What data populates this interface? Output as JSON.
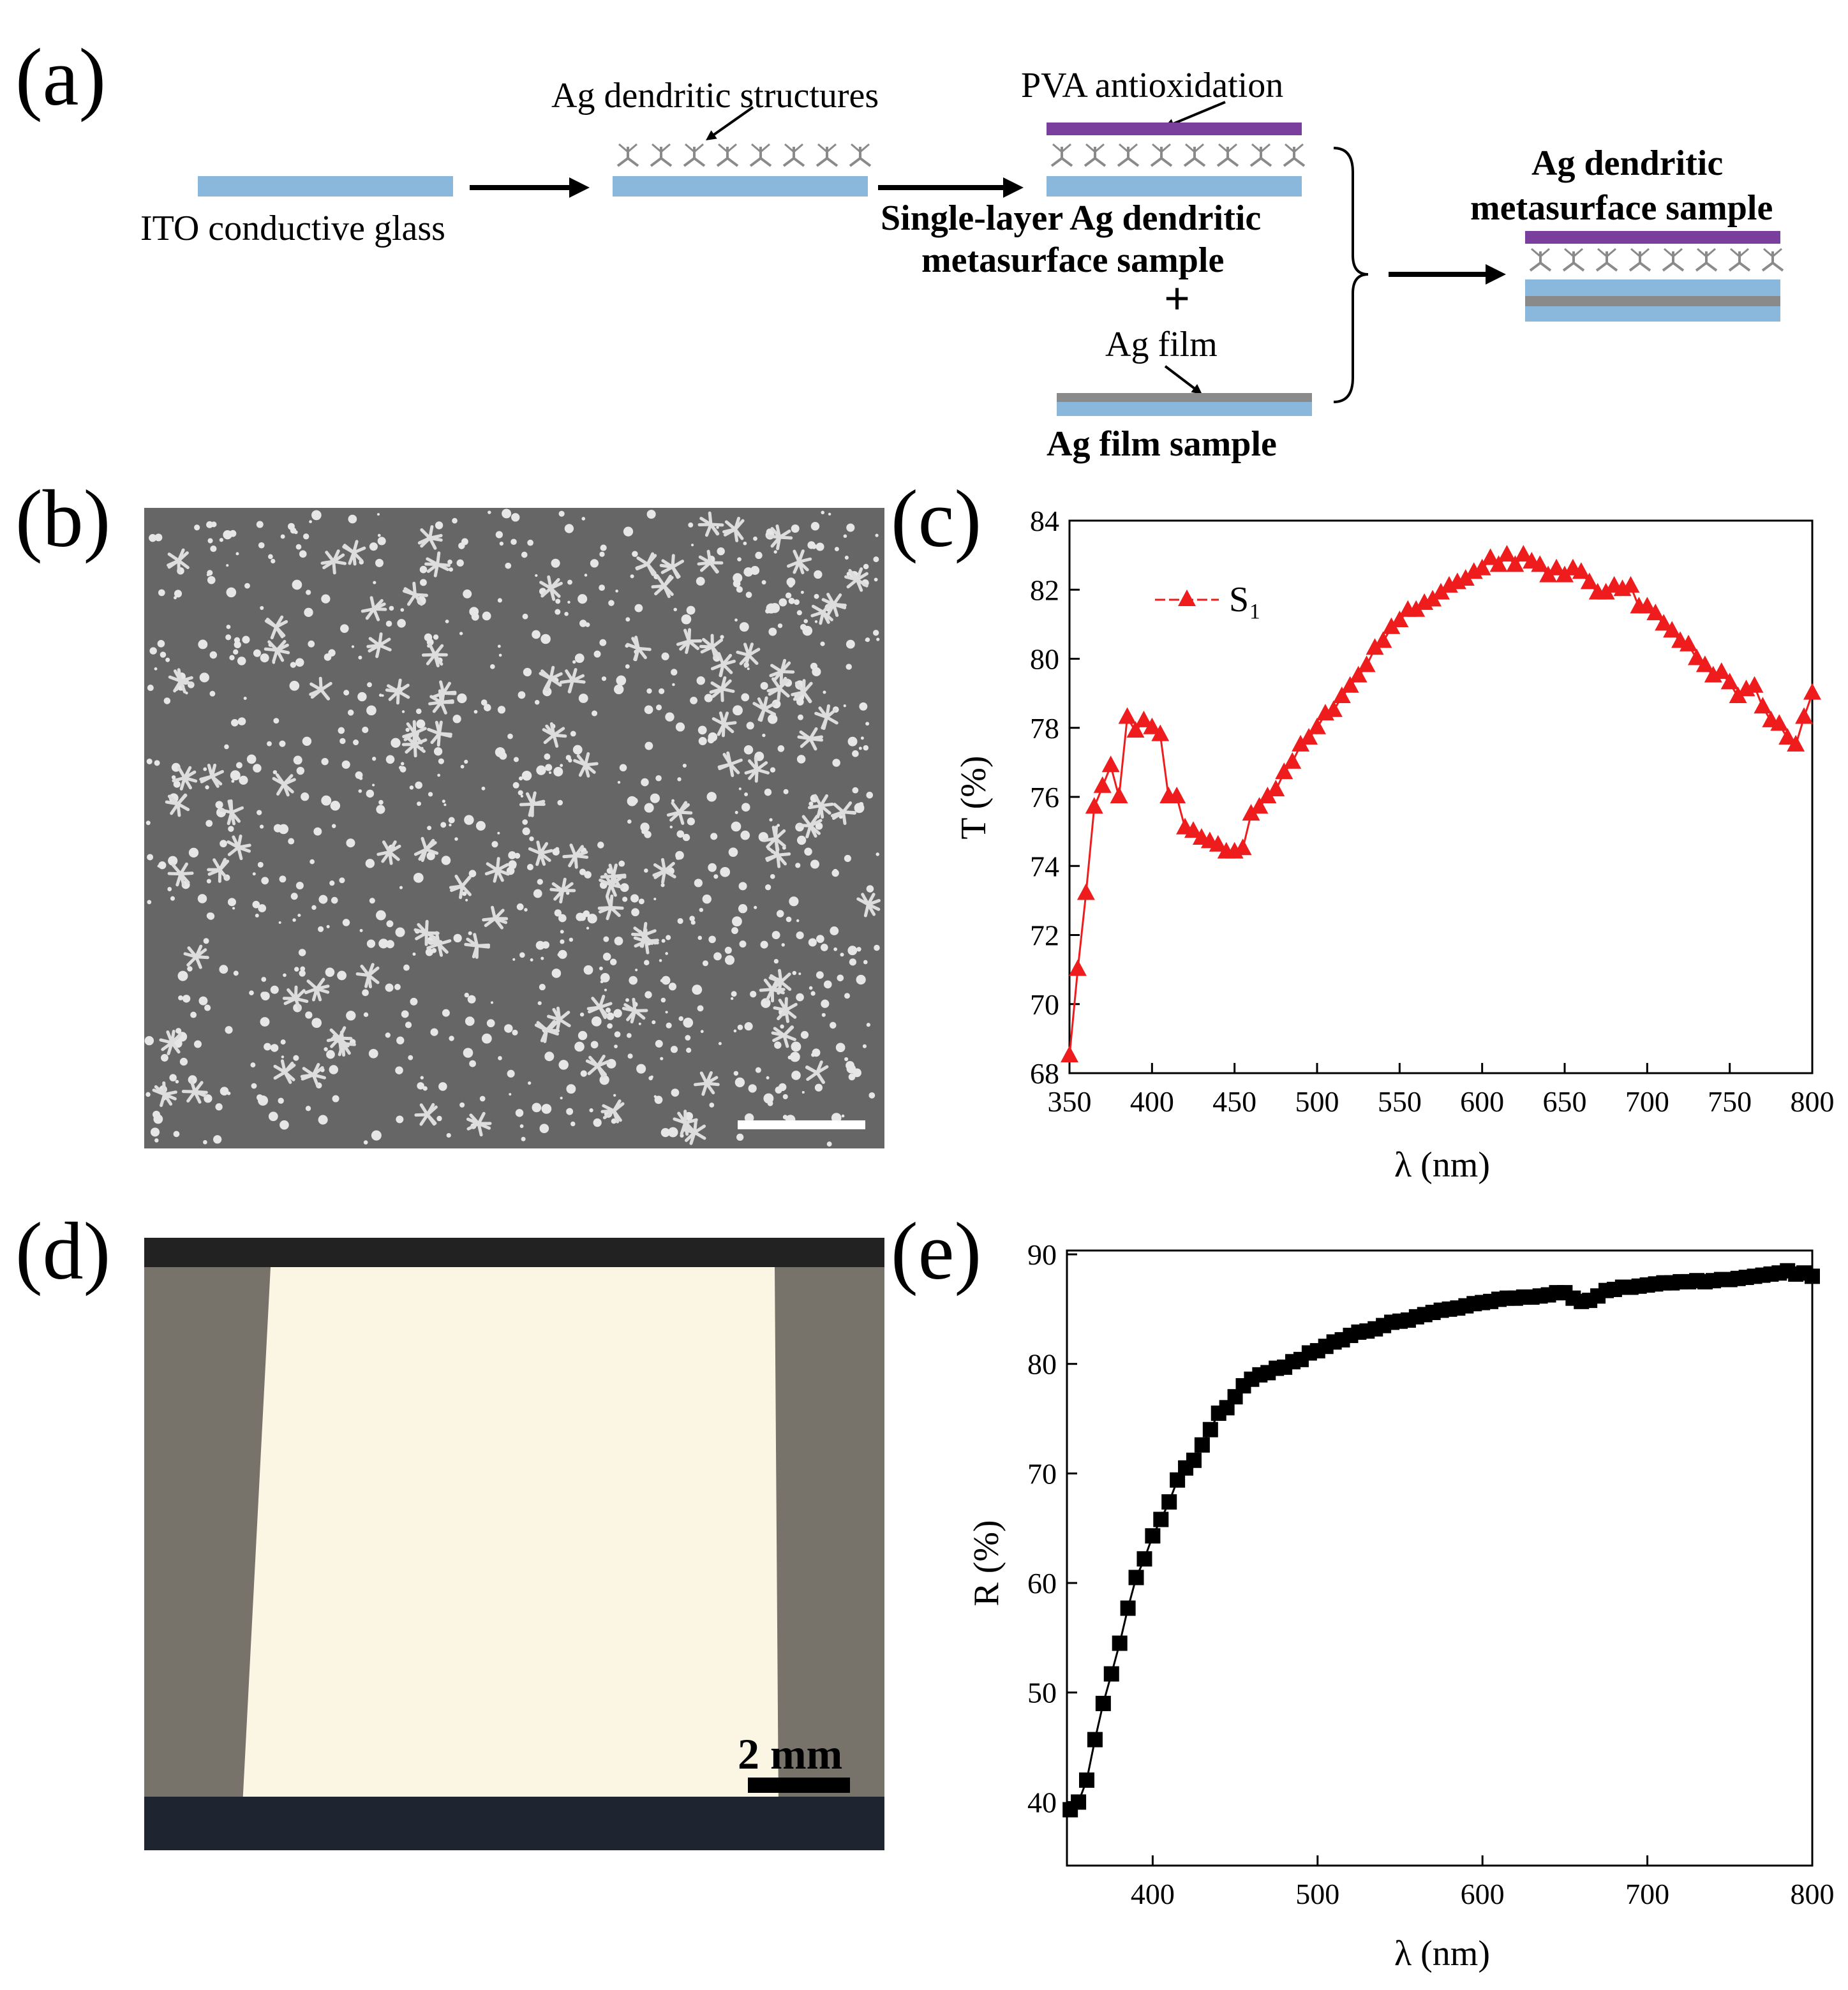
{
  "panel_labels": [
    "(a)",
    "(b)",
    "(c)",
    "(d)",
    "(e)"
  ],
  "diagram": {
    "ito": "ITO conductive glass",
    "dendritic": "Ag dendritic structures",
    "pva": "PVA antioxidation",
    "single_layer": [
      "Single-layer Ag dendritic",
      "metasurface sample"
    ],
    "plus": "+",
    "ag_film": "Ag film",
    "ag_film_sample": "Ag film sample",
    "result": [
      "Ag dendritic",
      "metasurface sample"
    ]
  },
  "photo": {
    "scale_bar": "2 mm"
  },
  "chart_data": [
    {
      "type": "line",
      "xlabel": "λ (nm)",
      "ylabel": "T (%)",
      "xlim": [
        350,
        800
      ],
      "ylim": [
        68,
        84
      ],
      "xticks": [
        350,
        400,
        450,
        500,
        550,
        600,
        650,
        700,
        750,
        800
      ],
      "yticks": [
        68,
        70,
        72,
        74,
        76,
        78,
        80,
        82,
        84
      ],
      "legend": "upper left",
      "marker": "triangle",
      "x": [
        350,
        355,
        360,
        365,
        370,
        375,
        380,
        385,
        390,
        395,
        400,
        405,
        410,
        415,
        420,
        425,
        430,
        435,
        440,
        445,
        450,
        455,
        460,
        465,
        470,
        475,
        480,
        485,
        490,
        495,
        500,
        505,
        510,
        515,
        520,
        525,
        530,
        535,
        540,
        545,
        550,
        555,
        560,
        565,
        570,
        575,
        580,
        585,
        590,
        595,
        600,
        605,
        610,
        615,
        620,
        625,
        630,
        635,
        640,
        645,
        650,
        655,
        660,
        665,
        670,
        675,
        680,
        685,
        690,
        695,
        700,
        705,
        710,
        715,
        720,
        725,
        730,
        735,
        740,
        745,
        750,
        755,
        760,
        765,
        770,
        775,
        780,
        785,
        790,
        795,
        800
      ],
      "series": [
        {
          "name": "S₁",
          "color": "#ee1c1c",
          "values": [
            68.5,
            71,
            73.2,
            75.7,
            76.3,
            76.9,
            76,
            78.3,
            77.9,
            78.2,
            78,
            77.8,
            76,
            76,
            75.1,
            75,
            74.8,
            74.7,
            74.6,
            74.4,
            74.4,
            74.5,
            75.5,
            75.7,
            76,
            76.2,
            76.7,
            77,
            77.5,
            77.7,
            78,
            78.4,
            78.5,
            78.9,
            79.2,
            79.5,
            79.8,
            80.3,
            80.5,
            80.9,
            81.1,
            81.4,
            81.4,
            81.6,
            81.7,
            81.9,
            82.1,
            82.2,
            82.3,
            82.5,
            82.6,
            82.9,
            82.7,
            83,
            82.7,
            83,
            82.8,
            82.7,
            82.4,
            82.6,
            82.4,
            82.6,
            82.5,
            82.2,
            81.9,
            81.9,
            82.1,
            82,
            82.1,
            81.5,
            81.5,
            81.3,
            81,
            80.8,
            80.5,
            80.4,
            80,
            79.8,
            79.5,
            79.6,
            79.3,
            78.9,
            79.1,
            79.2,
            78.6,
            78.2,
            78.1,
            77.7,
            77.5,
            78.3,
            79
          ]
        }
      ]
    },
    {
      "type": "line",
      "xlabel": "λ (nm)",
      "ylabel": "R (%)",
      "xlim": [
        348,
        800
      ],
      "ylim": [
        34.2,
        90.35
      ],
      "xticks": [
        400,
        500,
        600,
        700,
        800
      ],
      "yticks": [
        40,
        50,
        60,
        70,
        80,
        90
      ],
      "marker": "square",
      "x": [
        350,
        355,
        360,
        365,
        370,
        375,
        380,
        385,
        390,
        395,
        400,
        405,
        410,
        415,
        420,
        425,
        430,
        435,
        440,
        445,
        450,
        455,
        460,
        465,
        470,
        475,
        480,
        485,
        490,
        495,
        500,
        505,
        510,
        515,
        520,
        525,
        530,
        535,
        540,
        545,
        550,
        555,
        560,
        565,
        570,
        575,
        580,
        585,
        590,
        595,
        600,
        605,
        610,
        615,
        620,
        625,
        630,
        635,
        640,
        645,
        650,
        655,
        660,
        665,
        670,
        675,
        680,
        685,
        690,
        695,
        700,
        705,
        710,
        715,
        720,
        725,
        730,
        735,
        740,
        745,
        750,
        755,
        760,
        765,
        770,
        775,
        780,
        785,
        790,
        795,
        800
      ],
      "series": [
        {
          "color": "#000000",
          "values": [
            39.3,
            40,
            42,
            45.7,
            49,
            51.7,
            54.5,
            57.7,
            60.5,
            62.2,
            64.3,
            65.8,
            67.4,
            69.4,
            70.5,
            71.2,
            72.6,
            74,
            75.5,
            76,
            77,
            78,
            78.6,
            79,
            79.2,
            79.6,
            79.7,
            80.2,
            80.4,
            81,
            81.2,
            81.6,
            82,
            82.2,
            82.6,
            82.9,
            83,
            83.2,
            83.5,
            83.8,
            83.9,
            84,
            84.3,
            84.5,
            84.7,
            84.9,
            85,
            85.1,
            85.3,
            85.5,
            85.6,
            85.7,
            85.9,
            86,
            86,
            86.1,
            86.1,
            86.2,
            86.3,
            86.5,
            86.5,
            86,
            85.7,
            85.8,
            86.2,
            86.7,
            86.8,
            87,
            87,
            87.1,
            87.2,
            87.3,
            87.4,
            87.4,
            87.5,
            87.5,
            87.6,
            87.5,
            87.6,
            87.7,
            87.7,
            87.8,
            87.9,
            88,
            88.1,
            88.2,
            88.3,
            88.5,
            88.2,
            88.3,
            88
          ]
        }
      ]
    }
  ]
}
